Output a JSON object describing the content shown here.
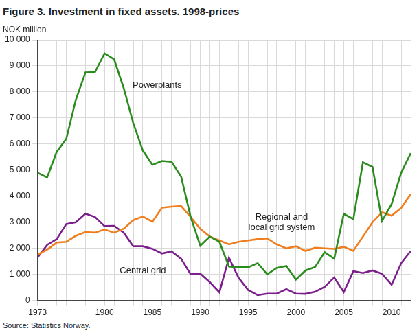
{
  "chart_data": {
    "type": "line",
    "title": "Figure 3. Investment in fixed assets. 1998-prices",
    "y_label": "NOK million",
    "source": "Source: Statistics Norway.",
    "x": [
      1973,
      1974,
      1975,
      1976,
      1977,
      1978,
      1979,
      1980,
      1981,
      1982,
      1983,
      1984,
      1985,
      1986,
      1987,
      1988,
      1989,
      1990,
      1991,
      1992,
      1993,
      1994,
      1995,
      1996,
      1997,
      1998,
      1999,
      2000,
      2001,
      2002,
      2003,
      2004,
      2005,
      2006,
      2007,
      2008,
      2009,
      2010,
      2011,
      2012
    ],
    "xlim": [
      1973,
      2012
    ],
    "xticks": [
      1973,
      1980,
      1985,
      1990,
      1995,
      2000,
      2005,
      2010
    ],
    "ylim": [
      0,
      10000
    ],
    "yticks": [
      0,
      {
        "value": 1000,
        "label": "1 000"
      },
      {
        "value": 2000,
        "label": "2 000"
      },
      {
        "value": 3000,
        "label": "3 000"
      },
      {
        "value": 4000,
        "label": "4 000"
      },
      {
        "value": 5000,
        "label": "5 000"
      },
      {
        "value": 6000,
        "label": "6 000"
      },
      {
        "value": 7000,
        "label": "7 000"
      },
      {
        "value": 8000,
        "label": "8 000"
      },
      {
        "value": 9000,
        "label": "9 000"
      },
      {
        "value": 10000,
        "label": "10 000"
      }
    ],
    "grid": true,
    "series": [
      {
        "name": "Powerplants",
        "color": "#2b8c1e",
        "values": [
          4900,
          4720,
          5700,
          6200,
          7700,
          8750,
          8760,
          9480,
          9250,
          8150,
          6800,
          5750,
          5200,
          5350,
          5320,
          4750,
          3200,
          2100,
          2450,
          2250,
          1300,
          1270,
          1270,
          1430,
          1000,
          1250,
          1320,
          800,
          1150,
          1280,
          1850,
          1600,
          3320,
          3120,
          5300,
          5120,
          3050,
          3700,
          4900,
          5650
        ]
      },
      {
        "name": "Regional and local grid system",
        "color": "#f07d1e",
        "values": [
          1750,
          1950,
          2220,
          2250,
          2480,
          2620,
          2600,
          2720,
          2600,
          2750,
          3080,
          3220,
          3020,
          3560,
          3600,
          3620,
          3200,
          2750,
          2450,
          2300,
          2150,
          2250,
          2300,
          2350,
          2380,
          2150,
          2000,
          2080,
          1900,
          2020,
          2000,
          1980,
          2060,
          1900,
          2450,
          3000,
          3380,
          3250,
          3550,
          4080
        ]
      },
      {
        "name": "Central grid",
        "color": "#7b1f8c",
        "values": [
          1650,
          2130,
          2350,
          2930,
          3000,
          3330,
          3200,
          2850,
          2860,
          2600,
          2080,
          2080,
          1980,
          1800,
          1880,
          1600,
          1000,
          1030,
          700,
          310,
          1640,
          870,
          400,
          200,
          260,
          260,
          430,
          260,
          250,
          330,
          520,
          880,
          320,
          1120,
          1050,
          1150,
          1020,
          600,
          1430,
          1900
        ]
      }
    ],
    "annotations": [
      {
        "text": [
          "Powerplants"
        ],
        "x": 1985.5,
        "y": 8250
      },
      {
        "text": [
          "Regional and",
          "local grid system"
        ],
        "x": 1998.5,
        "y": 3000
      },
      {
        "text": [
          "Central grid"
        ],
        "x": 1984,
        "y": 1150
      }
    ]
  }
}
